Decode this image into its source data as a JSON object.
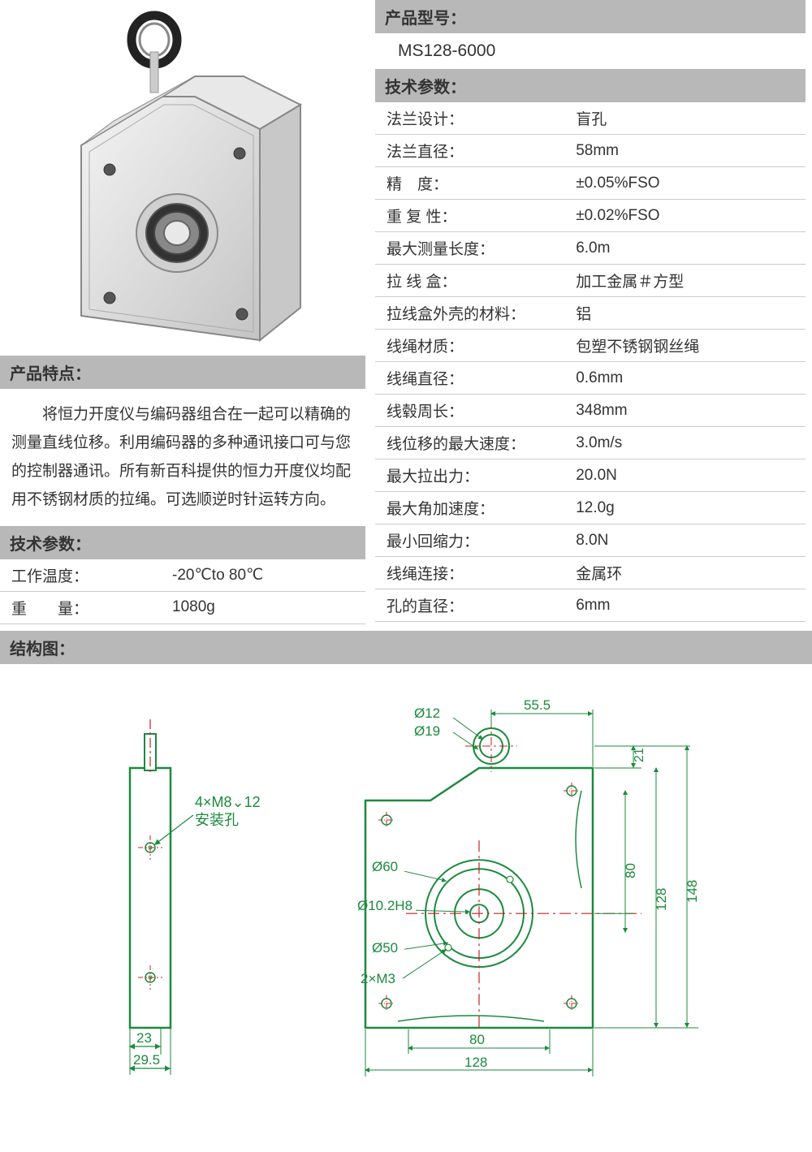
{
  "headers": {
    "model": "产品型号：",
    "tech_params": "技术参数：",
    "features": "产品特点：",
    "structure": "结构图："
  },
  "model_value": "MS128-6000",
  "features_text": "将恒力开度仪与编码器组合在一起可以精确的测量直线位移。利用编码器的多种通讯接口可与您的控制器通讯。所有新百科提供的恒力开度仪均配用不锈钢材质的拉绳。可选顺逆时针运转方向。",
  "left_specs": [
    {
      "label": "工作温度：",
      "value": "-20℃to 80℃"
    },
    {
      "label": "重　　量：",
      "value": "1080g"
    }
  ],
  "right_specs": [
    {
      "label": "法兰设计：",
      "value": "盲孔"
    },
    {
      "label": "法兰直径：",
      "value": "58mm"
    },
    {
      "label": "精　度：",
      "value": "±0.05%FSO"
    },
    {
      "label": "重 复 性：",
      "value": "±0.02%FSO"
    },
    {
      "label": "最大测量长度：",
      "value": "6.0m"
    },
    {
      "label": "拉 线 盒：",
      "value": "加工金属＃方型"
    },
    {
      "label": "拉线盒外壳的材料：",
      "value": "铝"
    },
    {
      "label": "线绳材质：",
      "value": "包塑不锈钢钢丝绳"
    },
    {
      "label": "线绳直径：",
      "value": "0.6mm"
    },
    {
      "label": "线毂周长：",
      "value": "348mm"
    },
    {
      "label": "线位移的最大速度：",
      "value": "3.0m/s"
    },
    {
      "label": "最大拉出力：",
      "value": "20.0N"
    },
    {
      "label": "最大角加速度：",
      "value": "12.0g"
    },
    {
      "label": "最小回缩力：",
      "value": "8.0N"
    },
    {
      "label": "线绳连接：",
      "value": "金属环"
    },
    {
      "label": "孔的直径：",
      "value": "6mm"
    }
  ],
  "diagram": {
    "colors": {
      "outline": "#1b8a3e",
      "centerline": "#cc2020",
      "text": "#1b8a3e",
      "dim_line": "#1b8a3e"
    },
    "labels": {
      "mount_hole": "4×M8⌄12",
      "mount_hole_cn": "安装孔",
      "d12": "Ø12",
      "d19": "Ø19",
      "d60": "Ø60",
      "d10_2": "Ø10.2H8",
      "d50": "Ø50",
      "m3": "2×M3",
      "w55_5": "55.5",
      "h21": "21",
      "h148": "148",
      "h128": "128",
      "h80": "80",
      "w23": "23",
      "w29_5": "29.5",
      "w80": "80",
      "w128": "128"
    }
  }
}
